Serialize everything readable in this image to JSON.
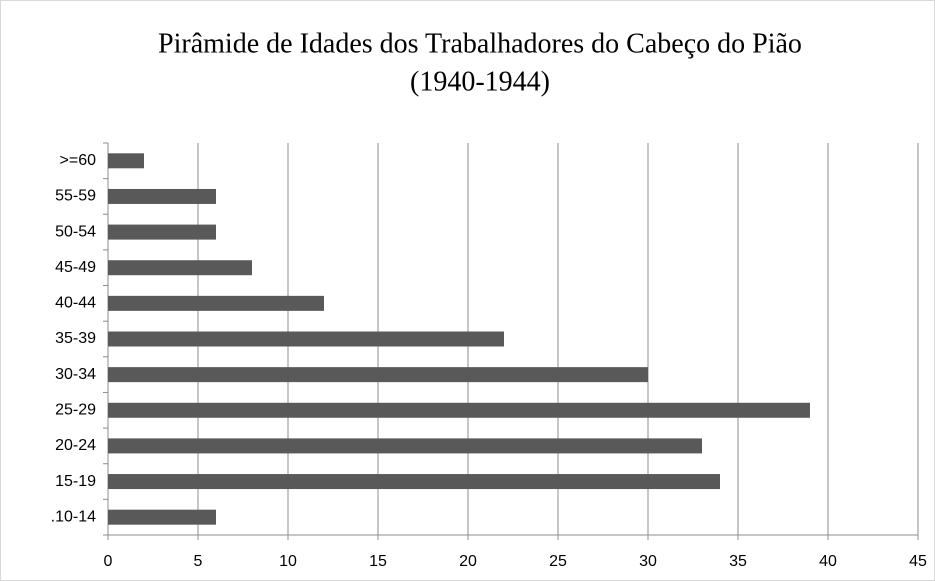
{
  "chart_data": {
    "type": "bar",
    "orientation": "horizontal",
    "title": [
      "Pirâmide de Idades dos Trabalhadores do Cabeço do Pião",
      "(1940-1944)"
    ],
    "categories": [
      ">=60",
      "55-59",
      "50-54",
      "45-49",
      "40-44",
      "35-39",
      "30-34",
      "25-29",
      "20-24",
      "15-19",
      ".10-14"
    ],
    "values": [
      2,
      6,
      6,
      8,
      12,
      22,
      30,
      39,
      33,
      34,
      6
    ],
    "color": "#595959",
    "xlim": [
      0,
      45
    ],
    "xticks": [
      0,
      5,
      10,
      15,
      20,
      25,
      30,
      35,
      40,
      45
    ],
    "grid": true
  }
}
